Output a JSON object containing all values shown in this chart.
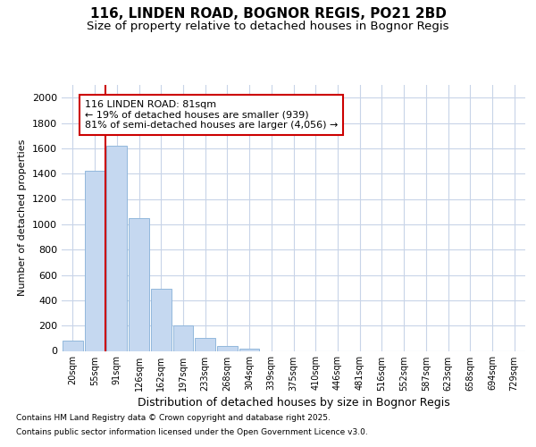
{
  "title1": "116, LINDEN ROAD, BOGNOR REGIS, PO21 2BD",
  "title2": "Size of property relative to detached houses in Bognor Regis",
  "xlabel": "Distribution of detached houses by size in Bognor Regis",
  "ylabel": "Number of detached properties",
  "categories": [
    "20sqm",
    "55sqm",
    "91sqm",
    "126sqm",
    "162sqm",
    "197sqm",
    "233sqm",
    "268sqm",
    "304sqm",
    "339sqm",
    "375sqm",
    "410sqm",
    "446sqm",
    "481sqm",
    "516sqm",
    "552sqm",
    "587sqm",
    "623sqm",
    "658sqm",
    "694sqm",
    "729sqm"
  ],
  "values": [
    80,
    1420,
    1620,
    1050,
    490,
    200,
    105,
    40,
    20,
    0,
    0,
    0,
    0,
    0,
    0,
    0,
    0,
    0,
    0,
    0,
    0
  ],
  "bar_color": "#c5d8f0",
  "bar_edge_color": "#92b8dc",
  "grid_color": "#c8d4e8",
  "annotation_box_edgecolor": "#cc0000",
  "property_line_color": "#cc0000",
  "annotation_line1": "116 LINDEN ROAD: 81sqm",
  "annotation_line2": "← 19% of detached houses are smaller (939)",
  "annotation_line3": "81% of semi-detached houses are larger (4,056) →",
  "ylim": [
    0,
    2100
  ],
  "yticks": [
    0,
    200,
    400,
    600,
    800,
    1000,
    1200,
    1400,
    1600,
    1800,
    2000
  ],
  "footnote1": "Contains HM Land Registry data © Crown copyright and database right 2025.",
  "footnote2": "Contains public sector information licensed under the Open Government Licence v3.0.",
  "bg_color": "#ffffff",
  "title1_fontsize": 11,
  "title2_fontsize": 9.5
}
